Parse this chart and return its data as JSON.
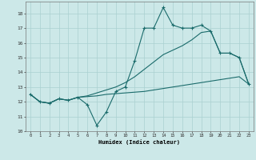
{
  "title": "",
  "xlabel": "Humidex (Indice chaleur)",
  "bg_color": "#cce8e8",
  "grid_color": "#aad0d0",
  "line_color": "#1a6b6b",
  "xlim": [
    -0.5,
    23.5
  ],
  "ylim": [
    10,
    18.8
  ],
  "yticks": [
    10,
    11,
    12,
    13,
    14,
    15,
    16,
    17,
    18
  ],
  "xticks": [
    0,
    1,
    2,
    3,
    4,
    5,
    6,
    7,
    8,
    9,
    10,
    11,
    12,
    13,
    14,
    15,
    16,
    17,
    18,
    19,
    20,
    21,
    22,
    23
  ],
  "line1_x": [
    0,
    1,
    2,
    3,
    4,
    5,
    6,
    7,
    8,
    9,
    10,
    11,
    12,
    13,
    14,
    15,
    16,
    17,
    18,
    19,
    20,
    21,
    22,
    23
  ],
  "line1_y": [
    12.5,
    12.0,
    11.9,
    12.2,
    12.1,
    12.3,
    11.8,
    10.4,
    11.3,
    12.7,
    13.0,
    14.8,
    17.0,
    17.0,
    18.4,
    17.2,
    17.0,
    17.0,
    17.2,
    16.8,
    15.3,
    15.3,
    15.0,
    13.2
  ],
  "line2_x": [
    0,
    1,
    2,
    3,
    4,
    5,
    6,
    7,
    8,
    9,
    10,
    11,
    12,
    13,
    14,
    15,
    16,
    17,
    18,
    19,
    20,
    21,
    22,
    23
  ],
  "line2_y": [
    12.5,
    12.0,
    11.9,
    12.2,
    12.1,
    12.3,
    12.35,
    12.4,
    12.5,
    12.55,
    12.6,
    12.65,
    12.7,
    12.8,
    12.9,
    13.0,
    13.1,
    13.2,
    13.3,
    13.4,
    13.5,
    13.6,
    13.7,
    13.2
  ],
  "line3_x": [
    0,
    1,
    2,
    3,
    4,
    5,
    6,
    7,
    8,
    9,
    10,
    11,
    12,
    13,
    14,
    15,
    16,
    17,
    18,
    19,
    20,
    21,
    22,
    23
  ],
  "line3_y": [
    12.5,
    12.0,
    11.9,
    12.2,
    12.1,
    12.3,
    12.4,
    12.6,
    12.8,
    13.0,
    13.3,
    13.7,
    14.2,
    14.7,
    15.2,
    15.5,
    15.8,
    16.2,
    16.7,
    16.8,
    15.3,
    15.3,
    15.0,
    13.2
  ]
}
